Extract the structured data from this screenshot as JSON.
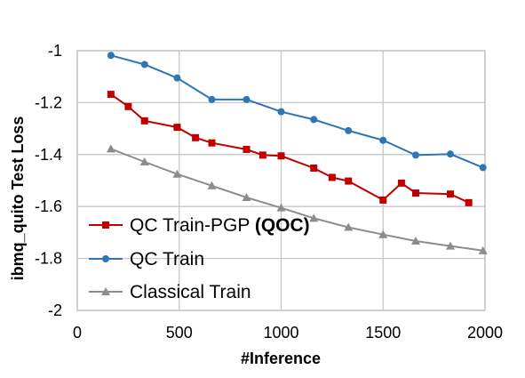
{
  "chart_data": {
    "type": "line",
    "xlabel": "#Inference",
    "ylabel": "ibmq_quito Test Loss",
    "xlim": [
      0,
      2000
    ],
    "ylim": [
      -2,
      -1
    ],
    "xticks": [
      0,
      500,
      1000,
      1500,
      2000
    ],
    "yticks": [
      -1,
      -1.2,
      -1.4,
      -1.6,
      -1.8,
      -2
    ],
    "grid": true,
    "legend_position": "lower-left",
    "series": [
      {
        "name": "QC Train-PGP",
        "name_suffix": "(QOC)",
        "color": "#c00000",
        "marker": "square",
        "x": [
          165,
          250,
          330,
          490,
          580,
          660,
          830,
          910,
          1000,
          1160,
          1250,
          1330,
          1500,
          1590,
          1660,
          1830,
          1920
        ],
        "y": [
          -1.168,
          -1.215,
          -1.27,
          -1.295,
          -1.335,
          -1.355,
          -1.38,
          -1.402,
          -1.405,
          -1.452,
          -1.488,
          -1.502,
          -1.575,
          -1.51,
          -1.548,
          -1.552,
          -1.585
        ]
      },
      {
        "name": "QC Train",
        "color": "#2e75b6",
        "marker": "circle",
        "x": [
          165,
          330,
          490,
          660,
          830,
          1000,
          1160,
          1330,
          1500,
          1660,
          1830,
          1990
        ],
        "y": [
          -1.018,
          -1.053,
          -1.105,
          -1.188,
          -1.188,
          -1.235,
          -1.265,
          -1.308,
          -1.345,
          -1.402,
          -1.398,
          -1.45
        ]
      },
      {
        "name": "Classical Train",
        "color": "#8c8c8c",
        "marker": "triangle",
        "x": [
          165,
          330,
          490,
          660,
          830,
          1000,
          1160,
          1330,
          1500,
          1660,
          1830,
          1990
        ],
        "y": [
          -1.378,
          -1.428,
          -1.475,
          -1.52,
          -1.565,
          -1.605,
          -1.645,
          -1.68,
          -1.708,
          -1.733,
          -1.752,
          -1.77
        ]
      }
    ]
  }
}
